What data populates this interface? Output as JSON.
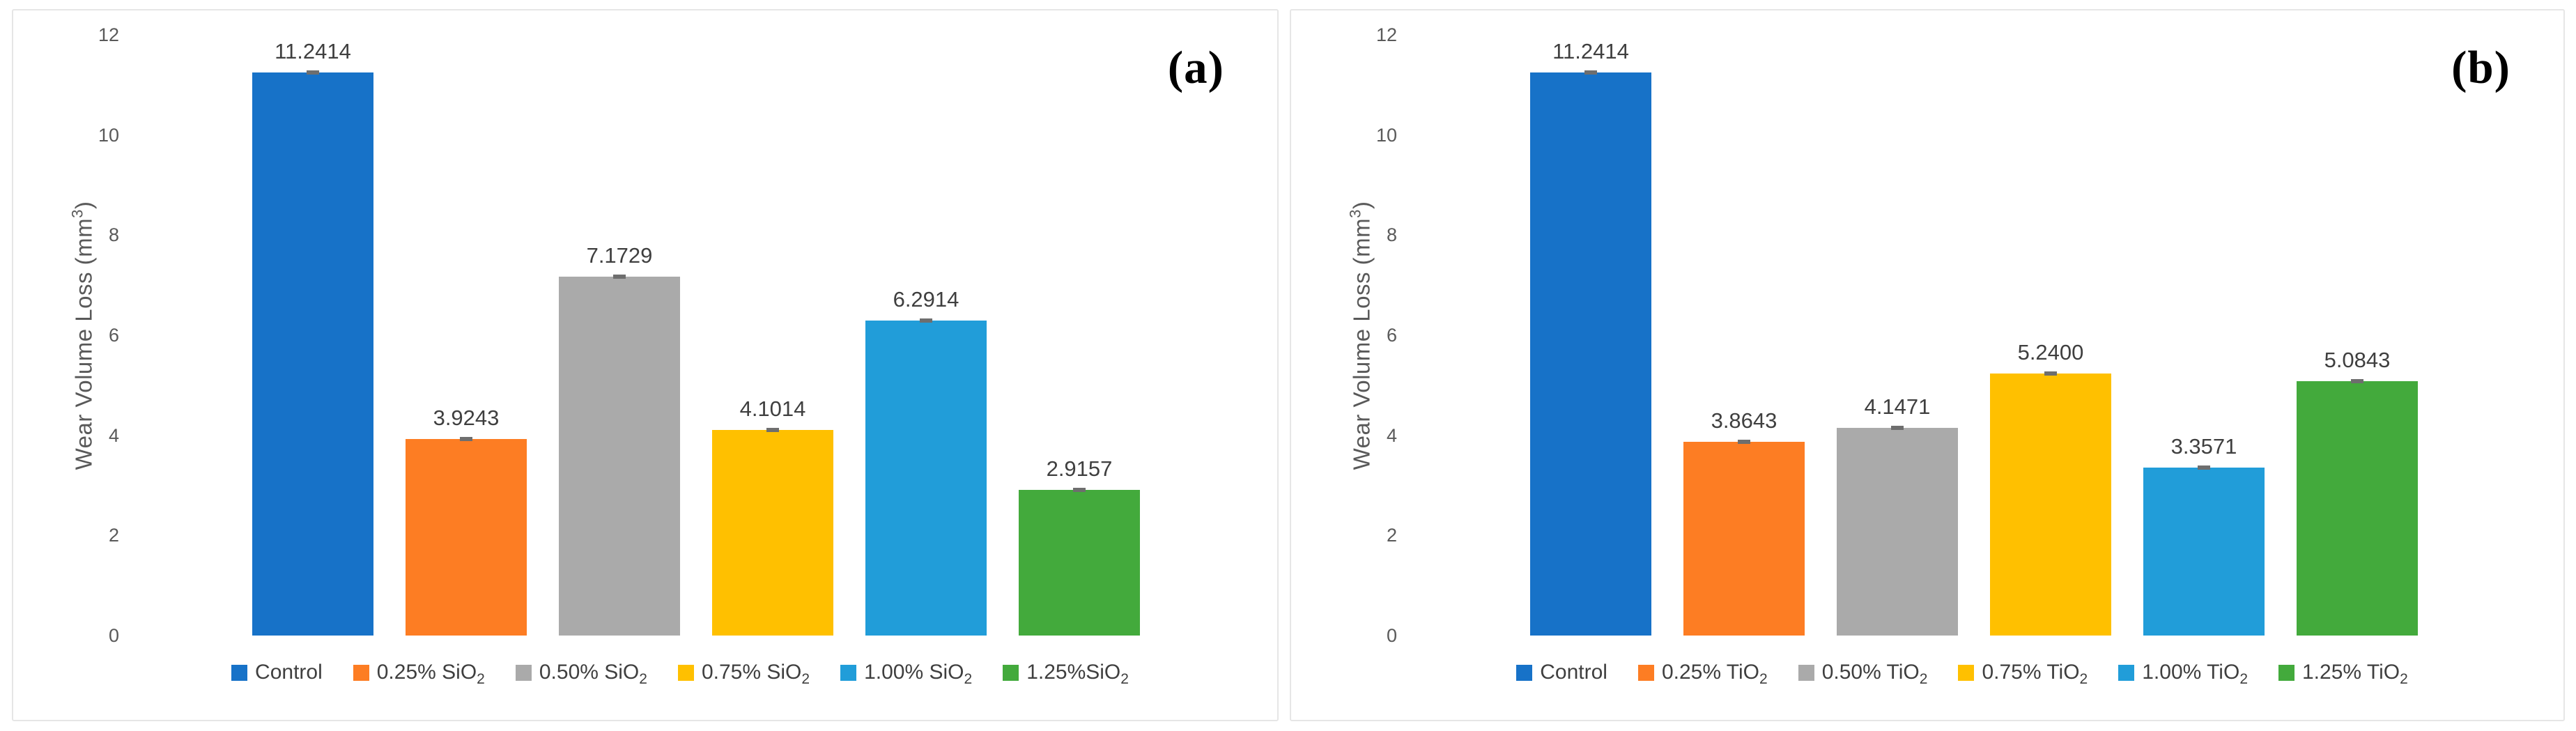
{
  "figure_type": "dual-panel-bar-chart",
  "style": {
    "background": "#FFFFFF",
    "panel_border_color": "#E6E6E6",
    "axis_text_color": "#595959",
    "value_label_color": "#3F3F3F",
    "error_bar_color": "#6E6E6E"
  },
  "chart_data": [
    {
      "type": "bar",
      "panel_tag": "(a)",
      "title": "",
      "xlabel": "",
      "ylabel": "Wear Volume Loss (mm3)",
      "ylabel_rich": {
        "main": "Wear Volume Loss (mm",
        "sup": "3",
        "close": ")"
      },
      "ylim": [
        0,
        12
      ],
      "yticks": [
        0,
        2,
        4,
        6,
        8,
        10,
        12
      ],
      "grid": false,
      "legend_position": "bottom",
      "error_bars": true,
      "categories": [
        "Control",
        "0.25% SiO2",
        "0.50% SiO2",
        "0.75% SiO2",
        "1.00% SiO2",
        "1.25%SiO2"
      ],
      "categories_rich": [
        {
          "main": "Control",
          "sub": ""
        },
        {
          "main": "0.25% SiO",
          "sub": "2"
        },
        {
          "main": "0.50% SiO",
          "sub": "2"
        },
        {
          "main": "0.75% SiO",
          "sub": "2"
        },
        {
          "main": "1.00% SiO",
          "sub": "2"
        },
        {
          "main": "1.25%SiO",
          "sub": "2"
        }
      ],
      "values": [
        11.2414,
        3.9243,
        7.1729,
        4.1014,
        6.2914,
        2.9157
      ],
      "value_labels": [
        "11.2414",
        "3.9243",
        "7.1729",
        "4.1014",
        "6.2914",
        "2.9157"
      ],
      "bar_colors": [
        "#1772C8",
        "#FD7D23",
        "#AAAAAA",
        "#FFC000",
        "#219DD9",
        "#43AA3C"
      ]
    },
    {
      "type": "bar",
      "panel_tag": "(b)",
      "title": "",
      "xlabel": "",
      "ylabel": "Wear Volume Loss (mm3)",
      "ylabel_rich": {
        "main": "Wear Volume Loss (mm",
        "sup": "3",
        "close": ")"
      },
      "ylim": [
        0,
        12
      ],
      "yticks": [
        0,
        2,
        4,
        6,
        8,
        10,
        12
      ],
      "grid": false,
      "legend_position": "bottom",
      "error_bars": true,
      "categories": [
        "Control",
        "0.25% TiO2",
        "0.50% TiO2",
        "0.75% TiO2",
        "1.00% TiO2",
        "1.25% TiO2"
      ],
      "categories_rich": [
        {
          "main": "Control",
          "sub": ""
        },
        {
          "main": "0.25% TiO",
          "sub": "2"
        },
        {
          "main": "0.50% TiO",
          "sub": "2"
        },
        {
          "main": "0.75% TiO",
          "sub": "2"
        },
        {
          "main": "1.00% TiO",
          "sub": "2"
        },
        {
          "main": "1.25% TiO",
          "sub": "2"
        }
      ],
      "values": [
        11.2414,
        3.8643,
        4.1471,
        5.24,
        3.3571,
        5.0843
      ],
      "value_labels": [
        "11.2414",
        "3.8643",
        "4.1471",
        "5.2400",
        "3.3571",
        "5.0843"
      ],
      "bar_colors": [
        "#1772C8",
        "#FD7D23",
        "#AAAAAA",
        "#FFC000",
        "#219DD9",
        "#43AA3C"
      ]
    }
  ]
}
